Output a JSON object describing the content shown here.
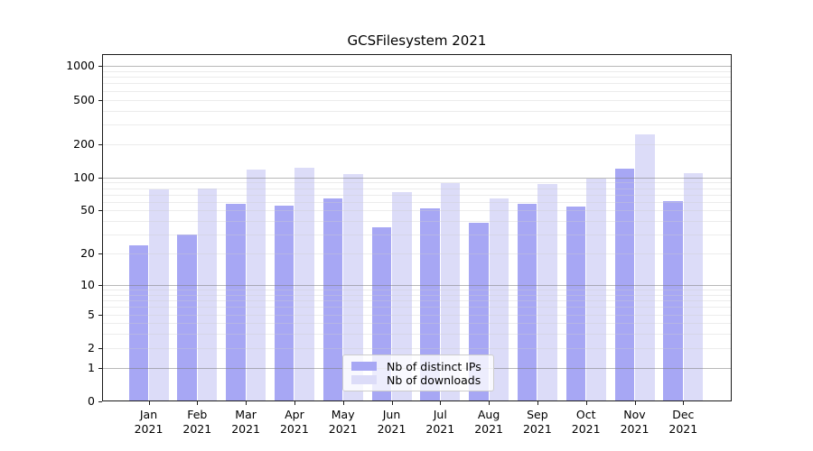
{
  "figure": {
    "title": "GCSFilesystem 2021"
  },
  "chart_data": {
    "type": "bar",
    "title": "GCSFilesystem 2021",
    "categories": [
      "Jan",
      "Feb",
      "Mar",
      "Apr",
      "May",
      "Jun",
      "Jul",
      "Aug",
      "Sep",
      "Oct",
      "Nov",
      "Dec"
    ],
    "year": "2021",
    "series": [
      {
        "name": "Nb of distinct IPs",
        "color": "#a7a7f4",
        "values": [
          24,
          30,
          58,
          55,
          65,
          35,
          52,
          39,
          58,
          54,
          120,
          61
        ]
      },
      {
        "name": "Nb of downloads",
        "color": "#dcdcf8",
        "values": [
          78,
          80,
          117,
          122,
          107,
          74,
          89,
          64,
          87,
          97,
          243,
          110
        ]
      }
    ],
    "xlabel": "",
    "ylabel": "",
    "yscale": "log1p",
    "yticks": [
      0,
      1,
      2,
      5,
      10,
      20,
      50,
      100,
      200,
      500,
      1000
    ],
    "ylim": [
      0,
      1279
    ],
    "grid": "on",
    "legend_position": "inside-lower-center"
  }
}
